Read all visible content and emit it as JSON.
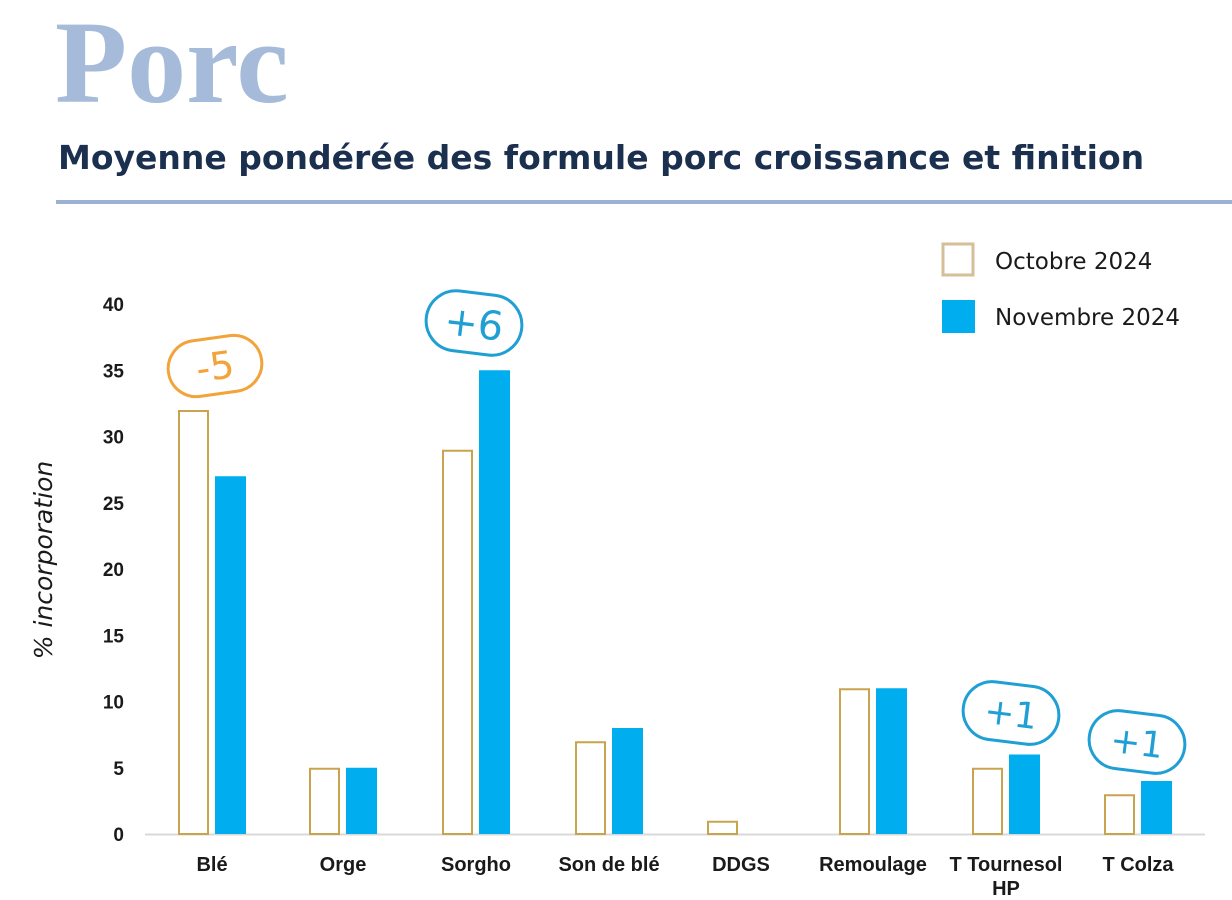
{
  "header": {
    "title": "Porc",
    "subtitle": "Moyenne pondérée des formule porc croissance et finition"
  },
  "colors": {
    "series_outline": "#c9a44e",
    "series_fill": "#00aeef",
    "badge_negative": "#f2a33a",
    "badge_positive": "#1f9fd4",
    "title": "#a6bbd9",
    "subtitle": "#1b2f4f"
  },
  "chart_data": {
    "type": "bar",
    "ylabel": "% incorporation",
    "ylim": [
      0,
      40
    ],
    "yticks": [
      0,
      5,
      10,
      15,
      20,
      25,
      30,
      35,
      40
    ],
    "categories": [
      "Blé",
      "Orge",
      "Sorgho",
      "Son de blé",
      "DDGS",
      "Remoulage",
      "T Tournesol HP",
      "T Colza"
    ],
    "series": [
      {
        "name": "Octobre 2024",
        "style": "outline",
        "values": [
          32,
          5,
          29,
          7,
          1,
          11,
          5,
          3
        ]
      },
      {
        "name": "Novembre 2024",
        "style": "filled",
        "values": [
          27,
          5,
          35,
          8,
          0,
          11,
          6,
          4
        ]
      }
    ],
    "legend_position": "top-right",
    "grid": false,
    "annotations": [
      {
        "category_index": 0,
        "text": "-5",
        "tone": "negative"
      },
      {
        "category_index": 2,
        "text": "+6",
        "tone": "positive"
      },
      {
        "category_index": 6,
        "text": "+1",
        "tone": "positive"
      },
      {
        "category_index": 7,
        "text": "+1",
        "tone": "positive"
      }
    ]
  }
}
